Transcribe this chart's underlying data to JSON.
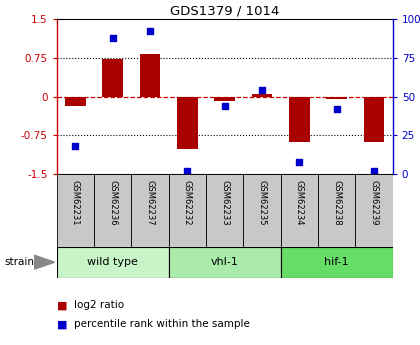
{
  "title": "GDS1379 / 1014",
  "samples": [
    "GSM62231",
    "GSM62236",
    "GSM62237",
    "GSM62232",
    "GSM62233",
    "GSM62235",
    "GSM62234",
    "GSM62238",
    "GSM62239"
  ],
  "log2_ratio": [
    -0.18,
    0.72,
    0.82,
    -1.02,
    -0.08,
    0.05,
    -0.88,
    -0.04,
    -0.88
  ],
  "percentile": [
    18,
    88,
    92,
    2,
    44,
    54,
    8,
    42,
    2
  ],
  "groups": [
    {
      "label": "wild type",
      "start": 0,
      "end": 3,
      "color": "#c8f5c8"
    },
    {
      "label": "vhl-1",
      "start": 3,
      "end": 6,
      "color": "#aaeaaa"
    },
    {
      "label": "hif-1",
      "start": 6,
      "end": 9,
      "color": "#66dd66"
    }
  ],
  "ylim": [
    -1.5,
    1.5
  ],
  "yticks_left": [
    -1.5,
    -0.75,
    0,
    0.75,
    1.5
  ],
  "yticks_right": [
    0,
    25,
    50,
    75,
    100
  ],
  "bar_color": "#aa0000",
  "dot_color": "#0000cc",
  "background_color": "#ffffff",
  "zero_line_color": "#cc0000",
  "bar_width": 0.55,
  "sample_box_color": "#c8c8c8"
}
